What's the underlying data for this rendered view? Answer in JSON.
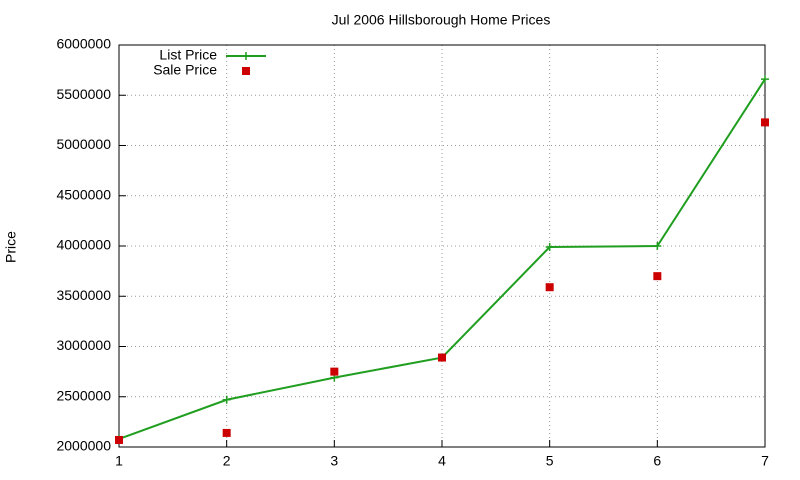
{
  "chart_data": {
    "type": "line",
    "title": "Jul 2006 Hillsborough Home Prices",
    "y_label": "Price",
    "x": [
      1,
      2,
      3,
      4,
      5,
      6,
      7
    ],
    "series": [
      {
        "name": "List Price",
        "color": "#1f9e1f",
        "style": "linespoints",
        "values": [
          2080000,
          2470000,
          2690000,
          2890000,
          3990000,
          4000000,
          5660000
        ]
      },
      {
        "name": "Sale Price",
        "color": "#cc0000",
        "style": "points",
        "values": [
          2070000,
          2140000,
          2750000,
          2890000,
          3590000,
          3700000,
          5230000
        ]
      }
    ],
    "xlim": [
      1,
      7
    ],
    "xticks": [
      1,
      2,
      3,
      4,
      5,
      6,
      7
    ],
    "ylim": [
      2000000,
      6000000
    ],
    "yticks": [
      2000000,
      2500000,
      3000000,
      3500000,
      4000000,
      4500000,
      5000000,
      5500000,
      6000000
    ],
    "grid": true,
    "legend": "top-left"
  }
}
